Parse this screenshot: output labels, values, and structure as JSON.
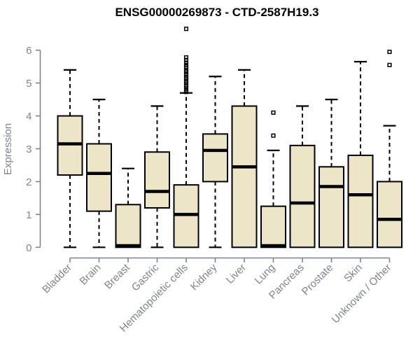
{
  "chart_data": {
    "type": "boxplot",
    "title": "ENSG00000269873 - CTD-2587H19.3",
    "ylabel": "Expression",
    "xlabel": "",
    "ylim": [
      0,
      6
    ],
    "yticks": [
      0,
      1,
      2,
      3,
      4,
      5,
      6
    ],
    "grid": false,
    "legend": false,
    "categories": [
      "Bladder",
      "Brain",
      "Breast",
      "Gastric",
      "Hematopoietic cells",
      "Kidney",
      "Liver",
      "Lung",
      "Pancreas",
      "Prostate",
      "Skin",
      "Unknown / Other"
    ],
    "series": [
      {
        "category": "Bladder",
        "low": 0,
        "q1": 2.2,
        "median": 3.15,
        "q3": 4.0,
        "high": 5.4,
        "outliers": []
      },
      {
        "category": "Brain",
        "low": 0,
        "q1": 1.1,
        "median": 2.25,
        "q3": 3.15,
        "high": 4.5,
        "outliers": []
      },
      {
        "category": "Breast",
        "low": 0,
        "q1": 0,
        "median": 0.05,
        "q3": 1.3,
        "high": 2.4,
        "outliers": []
      },
      {
        "category": "Gastric",
        "low": 0,
        "q1": 1.2,
        "median": 1.7,
        "q3": 2.9,
        "high": 4.3,
        "outliers": []
      },
      {
        "category": "Hematopoietic cells",
        "low": 0,
        "q1": 0,
        "median": 1.0,
        "q3": 1.9,
        "high": 4.7,
        "outliers": [
          6.65,
          5.78,
          5.7,
          5.62,
          5.55,
          5.5,
          5.45,
          5.39,
          5.34,
          5.28,
          5.23,
          5.17,
          5.12,
          5.06,
          5.01,
          4.95,
          4.9,
          4.84,
          4.78,
          4.73
        ]
      },
      {
        "category": "Kidney",
        "low": 0,
        "q1": 2.0,
        "median": 2.95,
        "q3": 3.45,
        "high": 5.2,
        "outliers": []
      },
      {
        "category": "Liver",
        "low": 0,
        "q1": 0,
        "median": 2.45,
        "q3": 4.3,
        "high": 5.4,
        "outliers": []
      },
      {
        "category": "Lung",
        "low": 0,
        "q1": 0,
        "median": 0.05,
        "q3": 1.25,
        "high": 2.95,
        "outliers": [
          4.1,
          3.4
        ]
      },
      {
        "category": "Pancreas",
        "low": 0,
        "q1": 0,
        "median": 1.35,
        "q3": 3.1,
        "high": 4.3,
        "outliers": []
      },
      {
        "category": "Prostate",
        "low": 0,
        "q1": 0,
        "median": 1.85,
        "q3": 2.45,
        "high": 4.5,
        "outliers": []
      },
      {
        "category": "Skin",
        "low": 0,
        "q1": 0,
        "median": 1.6,
        "q3": 2.8,
        "high": 5.65,
        "outliers": []
      },
      {
        "category": "Unknown / Other",
        "low": 0,
        "q1": 0,
        "median": 0.85,
        "q3": 2.0,
        "high": 3.7,
        "outliers": [
          5.95,
          5.55
        ]
      }
    ],
    "style": {
      "box_fill": "#ECE5C8",
      "box_border": "#000000",
      "median_color": "#000000",
      "whisker_color": "#000000",
      "outlier_color": "#000000",
      "axis_color": "#7D8590",
      "tick_label_color": "#7D8590",
      "title_color": "#000000",
      "background": "#FFFFFF"
    }
  }
}
